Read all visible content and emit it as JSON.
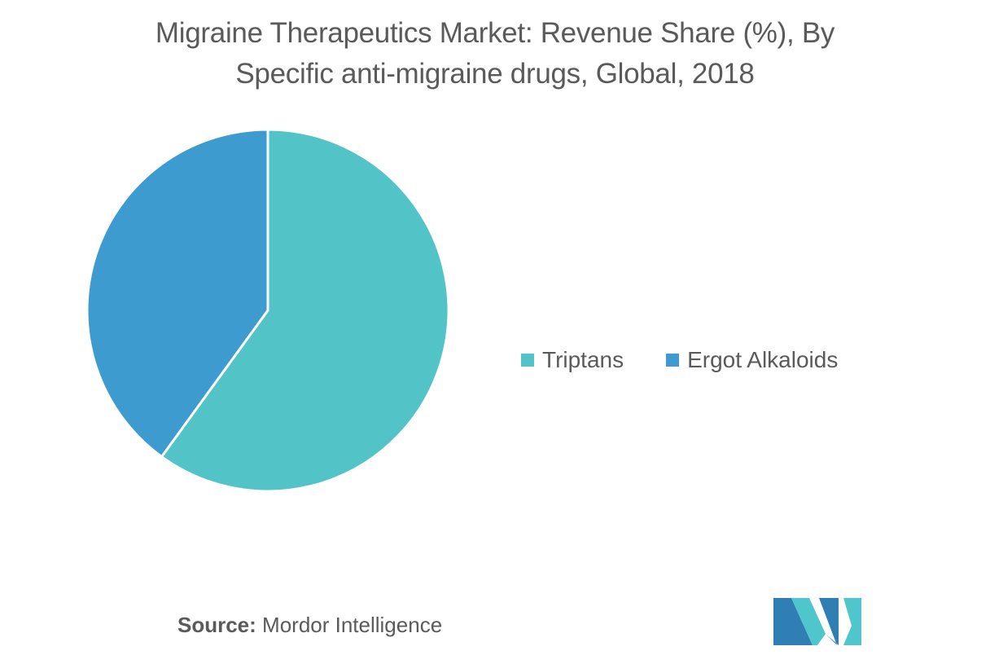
{
  "title_line1": "Migraine Therapeutics Market: Revenue Share (%), By",
  "title_line2": "Specific anti-migraine drugs, Global, 2018",
  "source_label": "Source:",
  "source_text": " Mordor Intelligence",
  "colors": {
    "triptans": "#52c4c8",
    "ergot": "#3d9bcf",
    "logo_dark": "#2f7fb5",
    "logo_light": "#4fc6cb"
  },
  "chart_data": {
    "type": "pie",
    "title": "Migraine Therapeutics Market: Revenue Share (%), By Specific anti-migraine drugs, Global, 2018",
    "legend_position": "right",
    "categories": [
      "Triptans",
      "Ergot Alkaloids"
    ],
    "values": [
      60,
      40
    ],
    "data_labels": false
  }
}
